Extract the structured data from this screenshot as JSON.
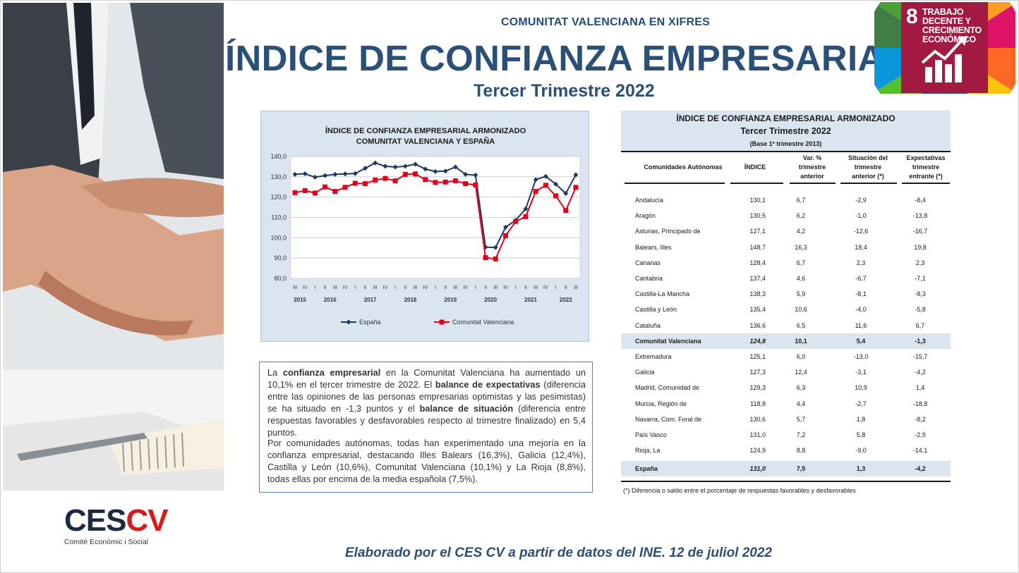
{
  "header": {
    "kicker": "COMUNITAT VALENCIANA EN XIFRES",
    "title": "ÍNDICE DE CONFIANZA EMPRESARIAL",
    "subtitle": "Tercer Trimestre 2022"
  },
  "sdg": {
    "number": "8",
    "label": "TRABAJO DECENTE Y CRECIMIENTO ECONÓMICO",
    "color": "#a21942"
  },
  "chart_data": {
    "type": "line",
    "title_line1": "ÍNDICE DE CONFIANZA EMPRESARIAL ARMONIZADO",
    "title_line2": "COMUNITAT VALENCIANA Y ESPAÑA",
    "ylim": [
      80,
      140
    ],
    "yticks": [
      "140,0",
      "130,0",
      "120,0",
      "110,0",
      "100,0",
      "90,0",
      "80,0"
    ],
    "grid": true,
    "legend_position": "bottom",
    "categories": [
      "III",
      "IV",
      "I",
      "II",
      "III",
      "IV",
      "I",
      "II",
      "III",
      "IV",
      "I",
      "II",
      "III",
      "IV",
      "I",
      "II",
      "III",
      "IV",
      "I",
      "II",
      "III",
      "IV",
      "I",
      "II",
      "III",
      "IV",
      "I",
      "II",
      "III"
    ],
    "years": [
      "2015",
      "2016",
      "2017",
      "2018",
      "2019",
      "2020",
      "2021",
      "2022"
    ],
    "series": [
      {
        "name": "España",
        "color": "#1f3a5f",
        "values": [
          131.2,
          131.5,
          129.8,
          130.6,
          131.2,
          131.4,
          131.6,
          134.2,
          136.8,
          135.2,
          134.8,
          135.2,
          136.2,
          133.8,
          132.6,
          132.8,
          134.8,
          131.2,
          130.8,
          95.4,
          95.2,
          105.2,
          108.6,
          114.2,
          128.6,
          130.2,
          126.4,
          121.8,
          131.0
        ]
      },
      {
        "name": "Comunitat Valenciana",
        "color": "#e3001b",
        "values": [
          122.2,
          123.2,
          122.0,
          125.0,
          122.8,
          124.8,
          126.8,
          126.6,
          128.4,
          129.2,
          128.0,
          131.2,
          131.4,
          128.6,
          127.2,
          127.4,
          128.0,
          126.6,
          126.0,
          90.2,
          89.6,
          101.0,
          108.0,
          110.4,
          122.8,
          125.8,
          120.6,
          113.4,
          124.8
        ]
      }
    ]
  },
  "text": {
    "p1": [
      {
        "t": "La ",
        "b": false
      },
      {
        "t": "confianza empresarial",
        "b": true
      },
      {
        "t": " en la Comunitat Valenciana ha aumentado un 10,1% en el tercer trimestre de 2022. El ",
        "b": false
      },
      {
        "t": "balance de expectativas",
        "b": true
      },
      {
        "t": " (diferencia entre las opiniones de las personas empresarias optimistas y las pesimistas) se ha situado en -1,3 puntos y el ",
        "b": false
      },
      {
        "t": "balance de situación",
        "b": true
      },
      {
        "t": " (diferencia entre respuestas favorables y desfavorables respecto al trimestre finalizado) en 5,4 puntos.",
        "b": false
      }
    ],
    "p2": "Por comunidades autónomas, todas han experimentado una mejoría en la confianza empresarial, destacando Illes Balears (16,3%), Galicia (12,4%), Castilla y León (10,6%), Comunitat Valenciana (10,1%) y La Rioja (8,8%), todas ellas por encima de la media española (7,5%)."
  },
  "table": {
    "title": "ÍNDICE DE CONFIANZA EMPRESARIAL ARMONIZADO",
    "subtitle": "Tercer Trimestre 2022",
    "base": "(Base 1º trimestre 2013)",
    "headers": [
      "Comunidades Autónomas",
      "ÍNDICE",
      "Var. %\ntrimestre\nanterior",
      "Situación del\ntrimestre\nanterior (*)",
      "Expectativas\ntrimestre\nentrante (*)"
    ],
    "rows": [
      [
        "Andalucía",
        "130,1",
        "6,7",
        "-2,9",
        "-8,4"
      ],
      [
        "Aragón",
        "130,5",
        "6,2",
        "-1,0",
        "-13,8"
      ],
      [
        "Asturias, Principado de",
        "127,1",
        "4,2",
        "-12,6",
        "-16,7"
      ],
      [
        "Balears, Illes",
        "148,7",
        "16,3",
        "18,4",
        "19,8"
      ],
      [
        "Canarias",
        "128,4",
        "6,7",
        "2,3",
        "2,3"
      ],
      [
        "Cantabria",
        "137,4",
        "4,6",
        "-6,7",
        "-7,1"
      ],
      [
        "Castilla-La Mancha",
        "138,3",
        "5,9",
        "-8,1",
        "-8,3"
      ],
      [
        "Castilla y León",
        "135,4",
        "10,6",
        "-4,0",
        "-5,8"
      ],
      [
        "Cataluña",
        "136,6",
        "6,5",
        "11,6",
        "6,7"
      ],
      [
        "Comunitat Valenciana",
        "124,8",
        "10,1",
        "5,4",
        "-1,3"
      ],
      [
        "Extremadura",
        "125,1",
        "6,0",
        "-13,0",
        "-15,7"
      ],
      [
        "Galicia",
        "127,3",
        "12,4",
        "-3,1",
        "-4,2"
      ],
      [
        "Madrid, Comunidad de",
        "129,3",
        "6,3",
        "10,9",
        "1,4"
      ],
      [
        "Murcia, Región de",
        "118,8",
        "4,4",
        "-2,7",
        "-18,8"
      ],
      [
        "Navarra, Com. Foral de",
        "130,6",
        "5,7",
        "1,8",
        "-8,2"
      ],
      [
        "País Vasco",
        "131,0",
        "7,2",
        "5,8",
        "-2,9"
      ],
      [
        "Rioja, La",
        "124,9",
        "8,8",
        "-9,0",
        "-14,1"
      ]
    ],
    "total": [
      "España",
      "131,0",
      "7,5",
      "1,3",
      "-4,2"
    ],
    "footnote": "(*)  Diferencia o saldo entre el porcentaje de respuestas favorables y desfavorables"
  },
  "logo": {
    "mark_a": "CES",
    "mark_b": "CV",
    "caption": "Comité Econòmic i Social"
  },
  "footer": {
    "note": "Elaborado por el CES CV a partir de datos del INE. 12 de juliol 2022"
  }
}
